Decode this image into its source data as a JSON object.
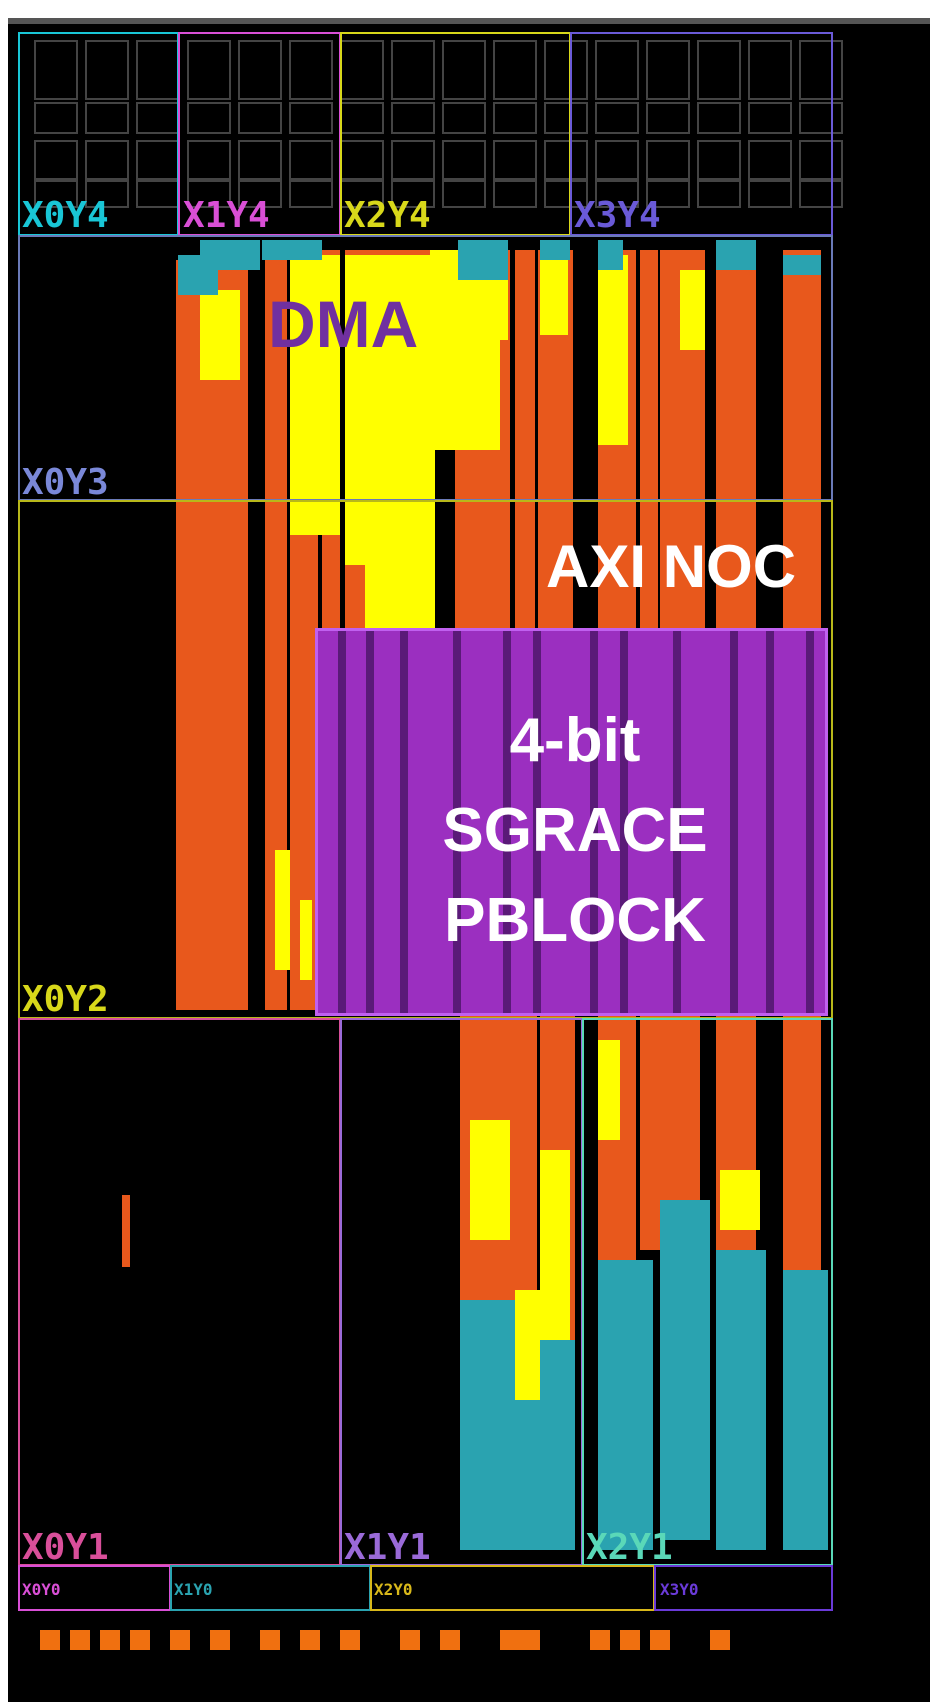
{
  "colors": {
    "orange": "#e8581c",
    "yellow": "#ffff00",
    "teal": "#2aa3b0",
    "pblock": "#9b2fc0",
    "dma_label": "#7030a0"
  },
  "regions": {
    "X0Y4": {
      "label": "X0Y4",
      "color": "#19c6d6"
    },
    "X1Y4": {
      "label": "X1Y4",
      "color": "#d94fd6"
    },
    "X2Y4": {
      "label": "X2Y4",
      "color": "#d8d81a"
    },
    "X3Y4": {
      "label": "X3Y4",
      "color": "#6a5ad8"
    },
    "X0Y3": {
      "label": "X0Y3",
      "color": "#7a88d8"
    },
    "X0Y2": {
      "label": "X0Y2",
      "color": "#d8d81a"
    },
    "X0Y1": {
      "label": "X0Y1",
      "color": "#d94f9a"
    },
    "X1Y1": {
      "label": "X1Y1",
      "color": "#9a6ad8"
    },
    "X2Y1": {
      "label": "X2Y1",
      "color": "#5ad8b8"
    },
    "X0Y0": {
      "label": "X0Y0",
      "color": "#d94fd6"
    },
    "X1Y0": {
      "label": "X1Y0",
      "color": "#2aa3b0"
    },
    "X2Y0": {
      "label": "X2Y0",
      "color": "#d8b81a"
    },
    "X3Y0": {
      "label": "X3Y0",
      "color": "#6a3ad8"
    }
  },
  "annotations": {
    "dma": "DMA",
    "axi_noc": "AXI NOC",
    "pblock_line1": "4-bit",
    "pblock_line2": "SGRACE",
    "pblock_line3": "PBLOCK"
  }
}
